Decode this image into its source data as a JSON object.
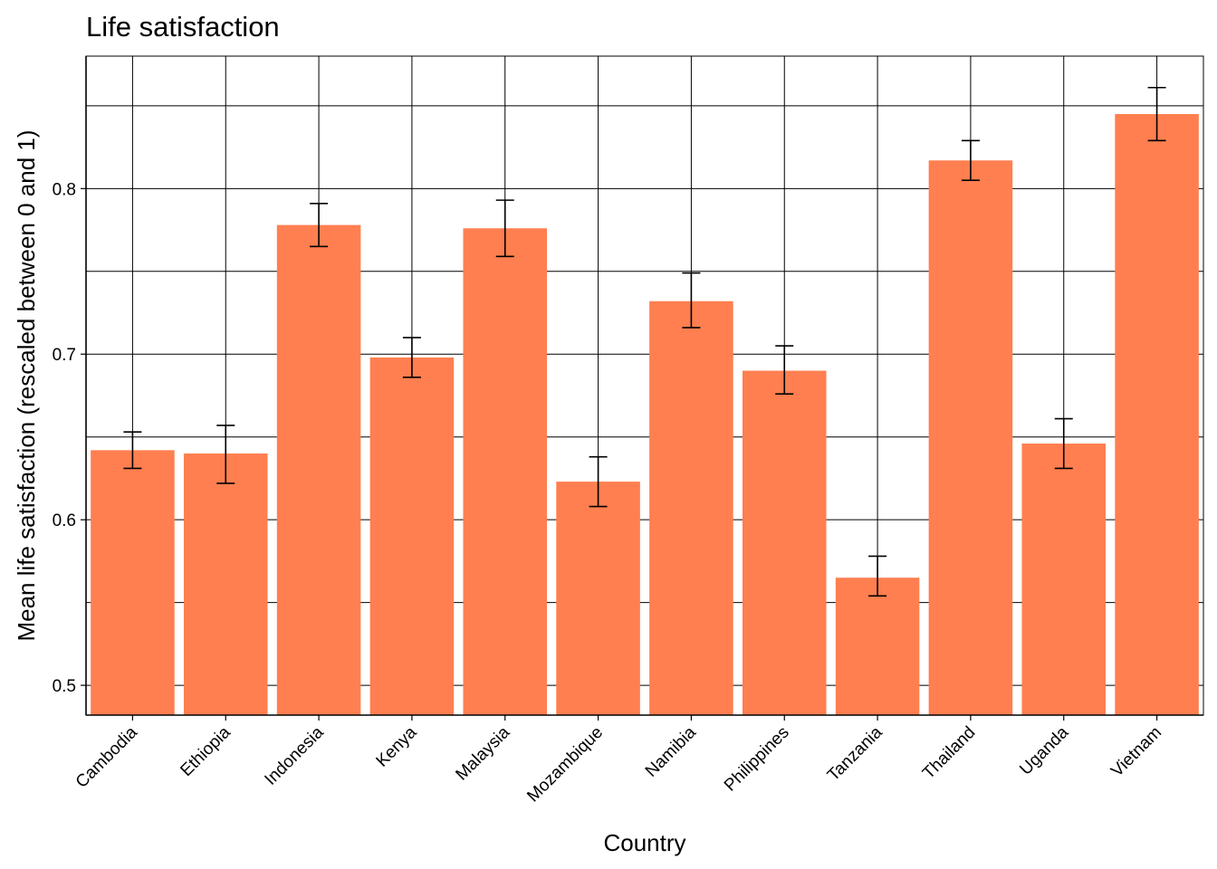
{
  "chart_data": {
    "type": "bar",
    "title": "Life satisfaction",
    "xlabel": "Country",
    "ylabel": "Mean life satisfaction (rescaled between 0 and 1)",
    "categories": [
      "Cambodia",
      "Ethiopia",
      "Indonesia",
      "Kenya",
      "Malaysia",
      "Mozambique",
      "Namibia",
      "Philippines",
      "Tanzania",
      "Thailand",
      "Uganda",
      "Vietnam"
    ],
    "values": [
      0.642,
      0.64,
      0.778,
      0.698,
      0.776,
      0.623,
      0.732,
      0.69,
      0.565,
      0.817,
      0.646,
      0.845
    ],
    "error_low": [
      0.631,
      0.622,
      0.765,
      0.686,
      0.759,
      0.608,
      0.716,
      0.676,
      0.554,
      0.805,
      0.631,
      0.829
    ],
    "error_high": [
      0.653,
      0.657,
      0.791,
      0.71,
      0.793,
      0.638,
      0.749,
      0.705,
      0.578,
      0.829,
      0.661,
      0.861
    ],
    "ylim": [
      0.482,
      0.88
    ],
    "yticks": [
      0.5,
      0.6,
      0.7,
      0.8
    ],
    "ytick_labels": [
      "0.5",
      "0.6",
      "0.7",
      "0.8"
    ],
    "grid": true,
    "bar_color": "#FF7F50",
    "grid_color": "#000000"
  }
}
